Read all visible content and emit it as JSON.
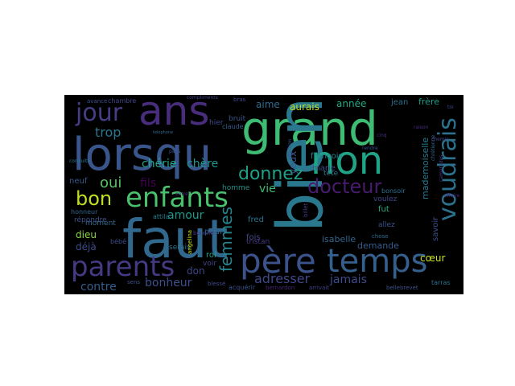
{
  "figure": {
    "background": "#000000",
    "words": [
      {
        "text": "grand",
        "color": "#3fbc73"
      },
      {
        "text": "bien",
        "color": "#2a788e"
      },
      {
        "text": "faut",
        "color": "#31688e"
      },
      {
        "text": "lorsqu",
        "color": "#39568c"
      },
      {
        "text": "ans",
        "color": "#472d7b"
      },
      {
        "text": "non",
        "color": "#20a486"
      },
      {
        "text": "enfants",
        "color": "#4ac16d"
      },
      {
        "text": "père",
        "color": "#3b528b"
      },
      {
        "text": "temps",
        "color": "#355f8d"
      },
      {
        "text": "parents",
        "color": "#443a83"
      },
      {
        "text": "jour",
        "color": "#433e85"
      },
      {
        "text": "bon",
        "color": "#c2df23"
      },
      {
        "text": "voudrais",
        "color": "#2c728e"
      },
      {
        "text": "donnez",
        "color": "#1fa187"
      },
      {
        "text": "docteur",
        "color": "#481b6d"
      },
      {
        "text": "femmes",
        "color": "#25848e"
      },
      {
        "text": "adresser",
        "color": "#3e4989"
      },
      {
        "text": "jamais",
        "color": "#3e4a89"
      },
      {
        "text": "chérie",
        "color": "#21a685"
      },
      {
        "text": "chère",
        "color": "#1f968b"
      },
      {
        "text": "trop",
        "color": "#2a768e"
      },
      {
        "text": "oui",
        "color": "#54c568"
      },
      {
        "text": "fils",
        "color": "#440154"
      },
      {
        "text": "amour",
        "color": "#1f9a8a"
      },
      {
        "text": "bonheur",
        "color": "#3d4e8a"
      },
      {
        "text": "contre",
        "color": "#365c8d"
      },
      {
        "text": "vie",
        "color": "#3dbc74"
      },
      {
        "text": "aurais",
        "color": "#bddf26"
      },
      {
        "text": "année",
        "color": "#23a983"
      },
      {
        "text": "aime",
        "color": "#2f6c8e"
      },
      {
        "text": "mademoiselle",
        "color": "#29798e"
      },
      {
        "text": "yeux",
        "color": "#3a548c"
      },
      {
        "text": "demande",
        "color": "#365d8d"
      },
      {
        "text": "cœur",
        "color": "#cae11f"
      },
      {
        "text": "fred",
        "color": "#2b748e"
      },
      {
        "text": "fois",
        "color": "#404688"
      },
      {
        "text": "dieu",
        "color": "#8bd646"
      },
      {
        "text": "déjà",
        "color": "#3e4c8a"
      },
      {
        "text": "don",
        "color": "#404588"
      },
      {
        "text": "isabelle",
        "color": "#32658e"
      },
      {
        "text": "frère",
        "color": "#1f9e89"
      },
      {
        "text": "jean",
        "color": "#2c718e"
      },
      {
        "text": "neuf",
        "color": "#38588c"
      },
      {
        "text": "françois",
        "color": "#26828e"
      },
      {
        "text": "marie",
        "color": "#3c4f8a"
      },
      {
        "text": "tête",
        "color": "#2a788e"
      },
      {
        "text": "savoir",
        "color": "#3b518b"
      },
      {
        "text": "fut",
        "color": "#25ab82"
      },
      {
        "text": "voulez",
        "color": "#3f4788"
      },
      {
        "text": "allez",
        "color": "#3b528b"
      },
      {
        "text": "homme",
        "color": "#21918c"
      },
      {
        "text": "tristan",
        "color": "#453781"
      },
      {
        "text": "roi",
        "color": "#20a386"
      },
      {
        "text": "peur",
        "color": "#33628d"
      },
      {
        "text": "serais",
        "color": "#2d708e"
      },
      {
        "text": "voir",
        "color": "#3e4989"
      },
      {
        "text": "hier",
        "color": "#3f4889"
      },
      {
        "text": "bruit",
        "color": "#39568c"
      },
      {
        "text": "claude",
        "color": "#355e8d"
      },
      {
        "text": "chambre",
        "color": "#3f4788"
      },
      {
        "text": "avance",
        "color": "#3b528b"
      },
      {
        "text": "moment",
        "color": "#306a8e"
      },
      {
        "text": "attila",
        "color": "#26818e"
      },
      {
        "text": "bébé",
        "color": "#3e4c8a"
      },
      {
        "text": "répondre",
        "color": "#3b528b"
      },
      {
        "text": "honneur",
        "color": "#32648e"
      },
      {
        "text": "bonsoir",
        "color": "#2d708e"
      },
      {
        "text": "acquérir",
        "color": "#3a538b"
      },
      {
        "text": "arrivait",
        "color": "#414487"
      },
      {
        "text": "bernardon",
        "color": "#482475"
      },
      {
        "text": "bellebrevet",
        "color": "#3b528b"
      },
      {
        "text": "tarras",
        "color": "#2c718e"
      },
      {
        "text": "sens",
        "color": "#3a548c"
      },
      {
        "text": "bouche",
        "color": "#443983"
      },
      {
        "text": "blessé",
        "color": "#3e4a89"
      },
      {
        "text": "angelina",
        "color": "#cde11d"
      },
      {
        "text": "chose",
        "color": "#2e6e8e"
      },
      {
        "text": "bras",
        "color": "#3f4889"
      },
      {
        "text": "billet",
        "color": "#443a83"
      },
      {
        "text": "affection",
        "color": "#3b528b"
      },
      {
        "text": "chrétienne",
        "color": "#33628d"
      },
      {
        "text": "camarades",
        "color": "#424086"
      },
      {
        "text": "affaire",
        "color": "#482878"
      },
      {
        "text": "toi",
        "color": "#3e4989"
      },
      {
        "text": "compliments",
        "color": "#414487"
      },
      {
        "text": "conduite",
        "color": "#2a788e"
      },
      {
        "text": "téléphone",
        "color": "#31688e"
      },
      {
        "text": "pays",
        "color": "#3b528b"
      },
      {
        "text": "entrer",
        "color": "#46327e"
      },
      {
        "text": "cinq",
        "color": "#46337f"
      },
      {
        "text": "rendre",
        "color": "#3b528b"
      },
      {
        "text": "raison",
        "color": "#472d7b"
      },
      {
        "text": "chemin",
        "color": "#3f4788"
      }
    ]
  }
}
